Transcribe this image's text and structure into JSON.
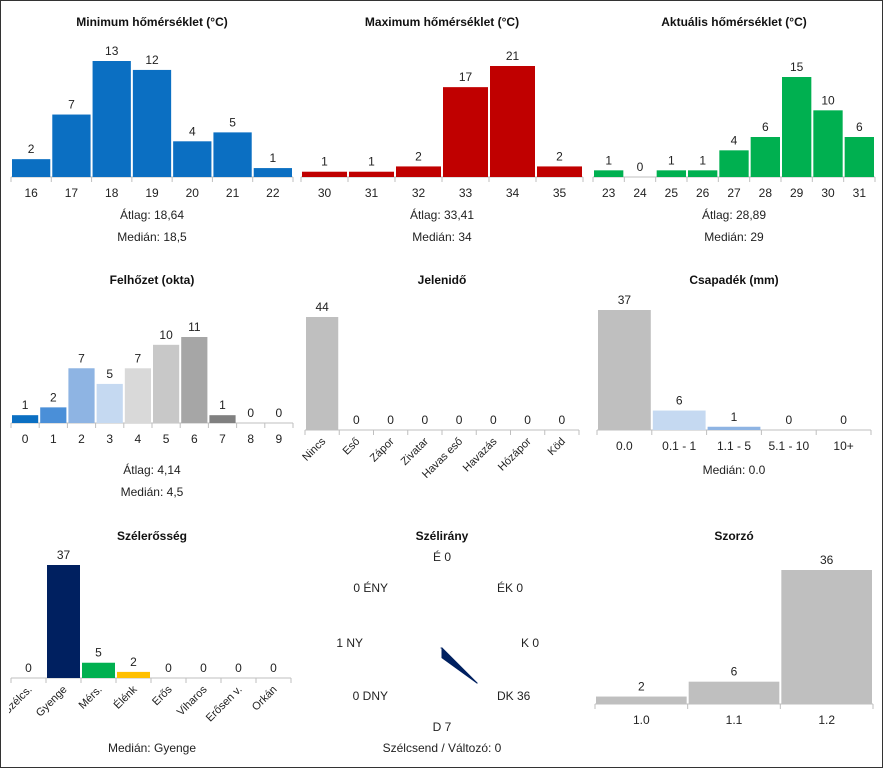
{
  "chart_data": [
    {
      "id": "min",
      "type": "bar",
      "title": "Minimum hőmérséklet (°C)",
      "categories": [
        "16",
        "17",
        "18",
        "19",
        "20",
        "21",
        "22"
      ],
      "values": [
        2,
        7,
        13,
        12,
        4,
        5,
        1
      ],
      "colors": [
        "#0b6fc2"
      ],
      "ylim": [
        0,
        13
      ],
      "stats": [
        {
          "label": "Átlag:",
          "value": "18,64"
        },
        {
          "label": "Medián:",
          "value": "18,5"
        }
      ]
    },
    {
      "id": "max",
      "type": "bar",
      "title": "Maximum hőmérséklet (°C)",
      "categories": [
        "30",
        "31",
        "32",
        "33",
        "34",
        "35"
      ],
      "values": [
        1,
        1,
        2,
        17,
        21,
        2
      ],
      "colors": [
        "#c00000"
      ],
      "ylim": [
        0,
        21
      ],
      "stats": [
        {
          "label": "Átlag:",
          "value": "33,41"
        },
        {
          "label": "Medián:",
          "value": "34"
        }
      ]
    },
    {
      "id": "act",
      "type": "bar",
      "title": "Aktuális hőmérséklet (°C)",
      "categories": [
        "23",
        "24",
        "25",
        "26",
        "27",
        "28",
        "29",
        "30",
        "31"
      ],
      "values": [
        1,
        0,
        1,
        1,
        4,
        6,
        15,
        10,
        6
      ],
      "colors": [
        "#00b050"
      ],
      "ylim": [
        0,
        15
      ],
      "stats": [
        {
          "label": "Átlag:",
          "value": "28,89"
        },
        {
          "label": "Medián:",
          "value": "29"
        }
      ]
    },
    {
      "id": "cloud",
      "type": "bar",
      "title": "Felhőzet (okta)",
      "categories": [
        "0",
        "1",
        "2",
        "3",
        "4",
        "5",
        "6",
        "7",
        "8",
        "9"
      ],
      "values": [
        1,
        2,
        7,
        5,
        7,
        10,
        11,
        1,
        0,
        0
      ],
      "colors": [
        "#0b6fc2",
        "#4a8fd8",
        "#8eb4e3",
        "#c5d9f1",
        "#d9d9d9",
        "#c8c8c8",
        "#a6a6a6",
        "#808080",
        "#bfbfbf",
        "#bfbfbf"
      ],
      "ylim": [
        0,
        11
      ],
      "stats": [
        {
          "label": "Átlag:",
          "value": "4,14"
        },
        {
          "label": "Medián:",
          "value": "4,5"
        }
      ]
    },
    {
      "id": "weather",
      "type": "bar",
      "title": "Jelenidő",
      "categories": [
        "Nincs",
        "Eső",
        "Zápor",
        "Zivatar",
        "Havas eső",
        "Havazás",
        "Hózápor",
        "Köd"
      ],
      "values": [
        44,
        0,
        0,
        0,
        0,
        0,
        0,
        0
      ],
      "colors": [
        "#bfbfbf"
      ],
      "ylim": [
        0,
        44
      ],
      "rotate_labels": true,
      "stats": []
    },
    {
      "id": "precip",
      "type": "bar",
      "title": "Csapadék (mm)",
      "categories": [
        "0.0",
        "0.1 - 1",
        "1.1 - 5",
        "5.1 - 10",
        "10+"
      ],
      "values": [
        37,
        6,
        1,
        0,
        0
      ],
      "colors": [
        "#bfbfbf",
        "#c5d9f1",
        "#8eb4e3",
        "#bfbfbf",
        "#bfbfbf"
      ],
      "ylim": [
        0,
        37
      ],
      "stats": [
        {
          "label": "Medián:",
          "value": "0.0"
        }
      ]
    },
    {
      "id": "wind",
      "type": "bar",
      "title": "Szélerősség",
      "categories": [
        "Szélcs.",
        "Gyenge",
        "Mérs.",
        "Élénk",
        "Erős",
        "Viharos",
        "Erősen v.",
        "Orkán"
      ],
      "values": [
        0,
        37,
        5,
        2,
        0,
        0,
        0,
        0
      ],
      "colors": [
        "#bfbfbf",
        "#002060",
        "#00b050",
        "#ffc000",
        "#bfbfbf",
        "#bfbfbf",
        "#bfbfbf",
        "#bfbfbf"
      ],
      "ylim": [
        0,
        37
      ],
      "rotate_labels": true,
      "stats": [
        {
          "label": "Medián:",
          "value": "Gyenge"
        }
      ]
    },
    {
      "id": "dir",
      "type": "radar",
      "title": "Szélirány",
      "directions": [
        {
          "label": "É",
          "value": 0
        },
        {
          "label": "ÉK",
          "value": 0
        },
        {
          "label": "K",
          "value": 0
        },
        {
          "label": "DK",
          "value": 36
        },
        {
          "label": "D",
          "value": 7
        },
        {
          "label": "DNY",
          "value": 0
        },
        {
          "label": "NY",
          "value": 1
        },
        {
          "label": "ÉNY",
          "value": 0
        }
      ],
      "color": "#002060",
      "footer": "Szélcsend / Változó: 0"
    },
    {
      "id": "mult",
      "type": "bar",
      "title": "Szorzó",
      "categories": [
        "1.0",
        "1.1",
        "1.2"
      ],
      "values": [
        2,
        6,
        36
      ],
      "colors": [
        "#bfbfbf"
      ],
      "ylim": [
        0,
        36
      ],
      "stats": []
    }
  ]
}
